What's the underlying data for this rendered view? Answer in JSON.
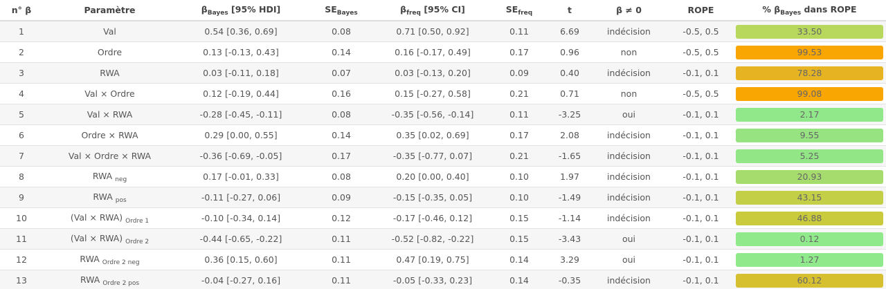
{
  "table": {
    "headers": [
      {
        "text": "n° β"
      },
      {
        "text": "Paramètre"
      },
      {
        "text": "β",
        "sub": "Bayes",
        "suffix": " [95% HDI]"
      },
      {
        "text": "SE",
        "sub": "Bayes"
      },
      {
        "text": "β",
        "sub": "freq",
        "suffix": " [95% CI]"
      },
      {
        "text": "SE",
        "sub": "freq"
      },
      {
        "text": "t"
      },
      {
        "text": "β ≠ 0"
      },
      {
        "text": "ROPE"
      },
      {
        "text": "% β",
        "sub": "Bayes",
        "suffix": " dans ROPE"
      }
    ],
    "rows": [
      {
        "n": "1",
        "param": "Val",
        "beta_bayes": "0.54 [0.36, 0.69]",
        "se_bayes": "0.08",
        "beta_freq": "0.71 [0.50, 0.92]",
        "se_freq": "0.11",
        "t": "6.69",
        "beta_ne_0": "indécision",
        "rope": "-0.5, 0.5",
        "pct": "33.50",
        "pct_color": "#b7d85c"
      },
      {
        "n": "2",
        "param": "Ordre",
        "beta_bayes": "0.13 [-0.13, 0.43]",
        "se_bayes": "0.14",
        "beta_freq": "0.16 [-0.17, 0.49]",
        "se_freq": "0.17",
        "t": "0.96",
        "beta_ne_0": "non",
        "rope": "-0.5, 0.5",
        "pct": "99.53",
        "pct_color": "#f9a602"
      },
      {
        "n": "3",
        "param": "RWA",
        "beta_bayes": "0.03 [-0.11, 0.18]",
        "se_bayes": "0.07",
        "beta_freq": "0.03 [-0.13, 0.20]",
        "se_freq": "0.09",
        "t": "0.40",
        "beta_ne_0": "indécision",
        "rope": "-0.1, 0.1",
        "pct": "78.28",
        "pct_color": "#e6b422"
      },
      {
        "n": "4",
        "param": "Val × Ordre",
        "beta_bayes": "0.12 [-0.19, 0.44]",
        "se_bayes": "0.16",
        "beta_freq": "0.15 [-0.27, 0.58]",
        "se_freq": "0.21",
        "t": "0.71",
        "beta_ne_0": "non",
        "rope": "-0.5, 0.5",
        "pct": "99.08",
        "pct_color": "#f9a602"
      },
      {
        "n": "5",
        "param": "Val × RWA",
        "beta_bayes": "-0.28 [-0.45, -0.11]",
        "se_bayes": "0.08",
        "beta_freq": "-0.35 [-0.56, -0.14]",
        "se_freq": "0.11",
        "t": "-3.25",
        "beta_ne_0": "oui",
        "rope": "-0.1, 0.1",
        "pct": "2.17",
        "pct_color": "#91e88a"
      },
      {
        "n": "6",
        "param": "Ordre × RWA",
        "beta_bayes": "0.29 [0.00, 0.55]",
        "se_bayes": "0.14",
        "beta_freq": "0.35 [0.02, 0.69]",
        "se_freq": "0.17",
        "t": "2.08",
        "beta_ne_0": "indécision",
        "rope": "-0.1, 0.1",
        "pct": "9.55",
        "pct_color": "#97e382"
      },
      {
        "n": "7",
        "param": "Val × Ordre × RWA",
        "beta_bayes": "-0.36 [-0.69, -0.05]",
        "se_bayes": "0.17",
        "beta_freq": "-0.35 [-0.77, 0.07]",
        "se_freq": "0.21",
        "t": "-1.65",
        "beta_ne_0": "indécision",
        "rope": "-0.1, 0.1",
        "pct": "5.25",
        "pct_color": "#93e686"
      },
      {
        "n": "8",
        "param": "RWA",
        "param_sub": "neg",
        "beta_bayes": "0.17 [-0.01, 0.33]",
        "se_bayes": "0.08",
        "beta_freq": "0.20 [0.00, 0.40]",
        "se_freq": "0.10",
        "t": "1.97",
        "beta_ne_0": "indécision",
        "rope": "-0.1, 0.1",
        "pct": "20.93",
        "pct_color": "#a6dc6e"
      },
      {
        "n": "9",
        "param": "RWA",
        "param_sub": "pos",
        "beta_bayes": "-0.11 [-0.27, 0.06]",
        "se_bayes": "0.09",
        "beta_freq": "-0.15 [-0.35, 0.05]",
        "se_freq": "0.10",
        "t": "-1.49",
        "beta_ne_0": "indécision",
        "rope": "-0.1, 0.1",
        "pct": "43.15",
        "pct_color": "#c4cf48"
      },
      {
        "n": "10",
        "param": "(Val × RWA)",
        "param_sub": "Ordre 1",
        "beta_bayes": "-0.10 [-0.34, 0.14]",
        "se_bayes": "0.12",
        "beta_freq": "-0.17 [-0.46, 0.12]",
        "se_freq": "0.15",
        "t": "-1.14",
        "beta_ne_0": "indécision",
        "rope": "-0.1, 0.1",
        "pct": "46.88",
        "pct_color": "#c9cb3d"
      },
      {
        "n": "11",
        "param": "(Val × RWA)",
        "param_sub": "Ordre 2",
        "beta_bayes": "-0.44 [-0.65, -0.22]",
        "se_bayes": "0.11",
        "beta_freq": "-0.52 [-0.82, -0.22]",
        "se_freq": "0.15",
        "t": "-3.43",
        "beta_ne_0": "oui",
        "rope": "-0.1, 0.1",
        "pct": "0.12",
        "pct_color": "#90ea8c"
      },
      {
        "n": "12",
        "param": "RWA",
        "param_sub": "Ordre 2 neg",
        "beta_bayes": "0.36 [0.15, 0.60]",
        "se_bayes": "0.11",
        "beta_freq": "0.47 [0.19, 0.75]",
        "se_freq": "0.14",
        "t": "3.29",
        "beta_ne_0": "oui",
        "rope": "-0.1, 0.1",
        "pct": "1.27",
        "pct_color": "#90e98b"
      },
      {
        "n": "13",
        "param": "RWA",
        "param_sub": "Ordre 2 pos",
        "beta_bayes": "-0.04 [-0.27, 0.16]",
        "se_bayes": "0.11",
        "beta_freq": "-0.05 [-0.33, 0.23]",
        "se_freq": "0.14",
        "t": "-0.35",
        "beta_ne_0": "indécision",
        "rope": "-0.1, 0.1",
        "pct": "60.12",
        "pct_color": "#d6c030"
      }
    ]
  }
}
